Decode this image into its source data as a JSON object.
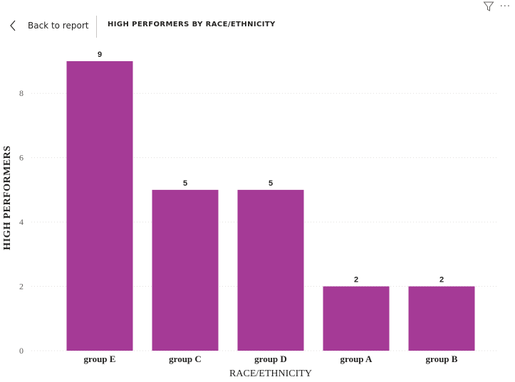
{
  "toolbar": {
    "filter_icon": "filter-icon",
    "more_icon": "more-options-icon",
    "more_glyph": "···"
  },
  "header": {
    "back_label": "Back to report",
    "back_icon": "chevron-left-icon",
    "title": "HIGH PERFORMERS BY RACE/ETHNICITY"
  },
  "colors": {
    "bar": "#A53A96",
    "grid": "#E1DFDD",
    "axis_text": "#605E5C",
    "label_text": "#252423"
  },
  "chart_data": {
    "type": "bar",
    "title": "HIGH PERFORMERS BY RACE/ETHNICITY",
    "xlabel": "RACE/ETHNICITY",
    "ylabel": "HIGH PERFORMERS",
    "categories": [
      "group E",
      "group C",
      "group D",
      "group A",
      "group B"
    ],
    "values": [
      9,
      5,
      5,
      2,
      2
    ],
    "data_labels": [
      "9",
      "5",
      "5",
      "2",
      "2"
    ],
    "ylim": [
      0,
      9
    ],
    "yticks": [
      0,
      2,
      4,
      6,
      8
    ],
    "grid": true,
    "legend": "none"
  }
}
